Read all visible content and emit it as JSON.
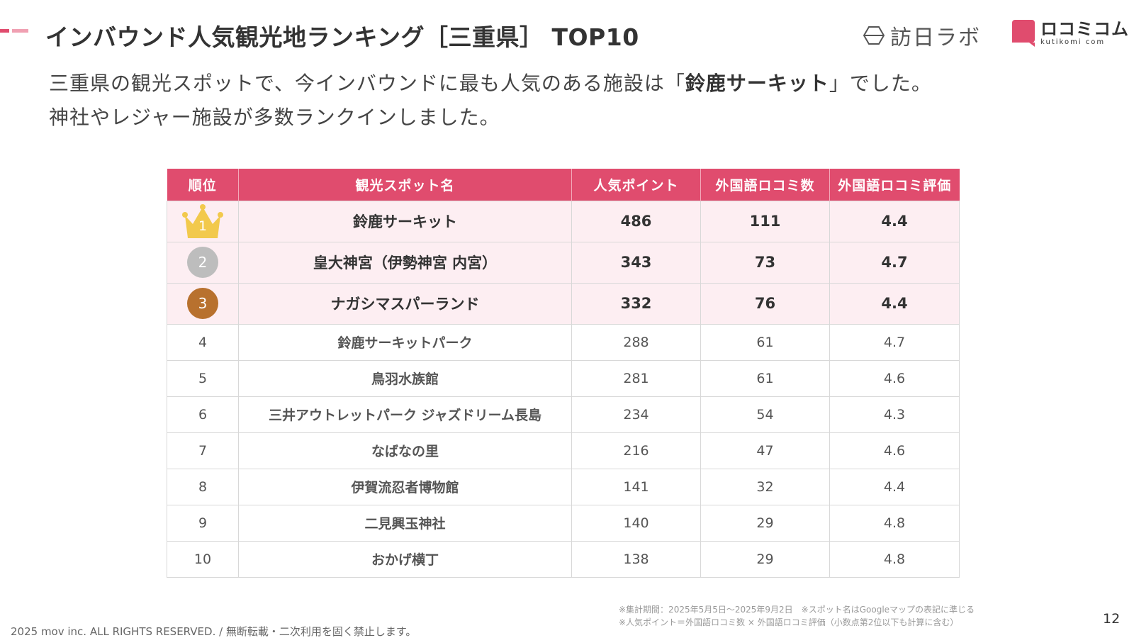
{
  "title": "インバウンド人気観光地ランキング［三重県］ TOP10",
  "brand": {
    "homonichi_lab": "訪日ラボ",
    "kuchikomi_com": "ロコミコム",
    "kuchikomi_url": "kutikomi com",
    "accent_color": "#e04c6e"
  },
  "intro": {
    "line1_before": "三重県の観光スポットで、今インバウンドに最も人気のある施設は「",
    "line1_highlight": "鈴鹿サーキット",
    "line1_after": "」でした。",
    "line2": "神社やレジャー施設が多数ランクインしました。"
  },
  "table": {
    "headers": [
      "順位",
      "観光スポット名",
      "人気ポイント",
      "外国語ロコミ数",
      "外国語ロコミ評価"
    ],
    "rows": [
      {
        "rank": "1",
        "name": "鈴鹿サーキット",
        "points": "486",
        "reviews": "111",
        "rating": "4.4",
        "badge": "crown",
        "badge_color": "#f2c94c"
      },
      {
        "rank": "2",
        "name": "皇大神宮（伊勢神宮 内宮）",
        "points": "343",
        "reviews": "73",
        "rating": "4.7",
        "badge": "circle",
        "badge_color": "#bdbdbd"
      },
      {
        "rank": "3",
        "name": "ナガシマスパーランド",
        "points": "332",
        "reviews": "76",
        "rating": "4.4",
        "badge": "circle",
        "badge_color": "#b8712e"
      },
      {
        "rank": "4",
        "name": "鈴鹿サーキットパーク",
        "points": "288",
        "reviews": "61",
        "rating": "4.7"
      },
      {
        "rank": "5",
        "name": "鳥羽水族館",
        "points": "281",
        "reviews": "61",
        "rating": "4.6"
      },
      {
        "rank": "6",
        "name": "三井アウトレットパーク ジャズドリーム長島",
        "points": "234",
        "reviews": "54",
        "rating": "4.3"
      },
      {
        "rank": "7",
        "name": "なばなの里",
        "points": "216",
        "reviews": "47",
        "rating": "4.6"
      },
      {
        "rank": "8",
        "name": "伊賀流忍者博物館",
        "points": "141",
        "reviews": "32",
        "rating": "4.4"
      },
      {
        "rank": "9",
        "name": "二見興玉神社",
        "points": "140",
        "reviews": "29",
        "rating": "4.8"
      },
      {
        "rank": "10",
        "name": "おかげ横丁",
        "points": "138",
        "reviews": "29",
        "rating": "4.8"
      }
    ]
  },
  "footnotes": [
    "※集計期間：2025年5月5日〜2025年9月2日　※スポット名はGoogleマップの表記に準じる",
    "※人気ポイント＝外国語ロコミ数 × 外国語ロコミ評価（小数点第2位以下も計算に含む）"
  ],
  "copyright": "2025 mov inc. ALL RIGHTS RESERVED. / 無断転載・二次利用を固く禁止します。",
  "page_number": "12"
}
